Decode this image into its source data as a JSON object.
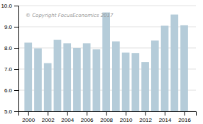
{
  "chart_data": {
    "type": "bar",
    "x": [
      2000,
      2001,
      2002,
      2003,
      2004,
      2005,
      2006,
      2007,
      2008,
      2009,
      2010,
      2011,
      2012,
      2013,
      2014,
      2015,
      2016
    ],
    "values": [
      8.25,
      7.98,
      7.28,
      8.38,
      8.22,
      8.0,
      8.22,
      7.93,
      9.68,
      8.31,
      7.78,
      7.76,
      7.33,
      8.35,
      9.05,
      9.58,
      9.07
    ],
    "color": "#b5ccd9",
    "xlim": [
      1999.0,
      2017.2
    ],
    "xticks": [
      2000,
      2002,
      2004,
      2006,
      2008,
      2010,
      2012,
      2014,
      2016
    ],
    "ylim": [
      5.0,
      10.0
    ],
    "yticks": [
      {
        "value": 5.0,
        "label": "5.0"
      },
      {
        "value": 6.0,
        "label": "6.0"
      },
      {
        "value": 7.0,
        "label": "7.0"
      },
      {
        "value": 8.0,
        "label": "8.0"
      },
      {
        "value": 9.0,
        "label": "9.0"
      },
      {
        "value": 10.0,
        "label": "10.0"
      }
    ],
    "grid": true,
    "annotations": [
      "© Copyright FocusEconomics  2017"
    ]
  }
}
